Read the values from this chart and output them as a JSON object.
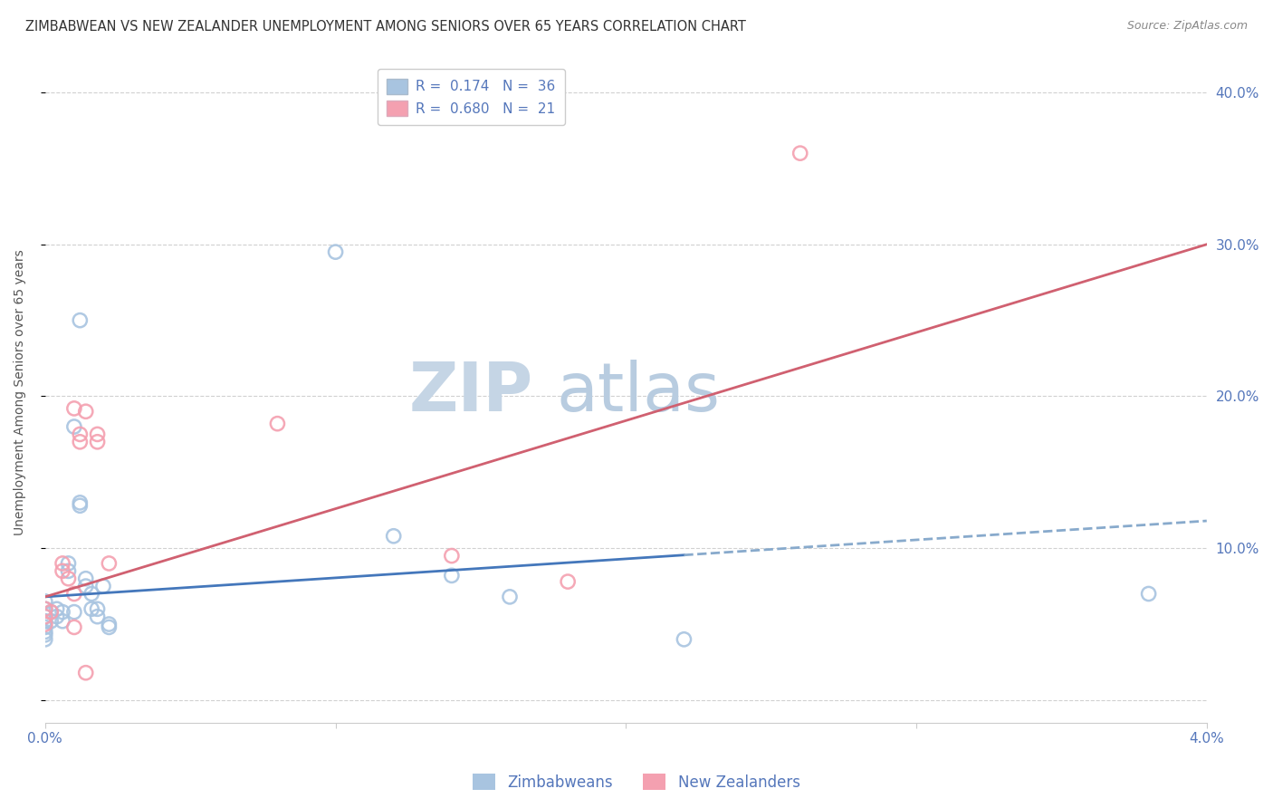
{
  "title": "ZIMBABWEAN VS NEW ZEALANDER UNEMPLOYMENT AMONG SENIORS OVER 65 YEARS CORRELATION CHART",
  "source": "Source: ZipAtlas.com",
  "ylabel": "Unemployment Among Seniors over 65 years",
  "zim_r": 0.174,
  "zim_n": 36,
  "nz_r": 0.68,
  "nz_n": 21,
  "color_zim": "#a8c4e0",
  "color_nz": "#f4a0b0",
  "trendline_zim_solid_color": "#4477bb",
  "trendline_zim_dash_color": "#88aacc",
  "trendline_nz_color": "#d06070",
  "watermark_zip_color": "#c8d8e8",
  "watermark_atlas_color": "#b8cce0",
  "background_color": "#ffffff",
  "grid_color": "#cccccc",
  "axis_label_color": "#5577bb",
  "title_color": "#333333",
  "xmin": 0.0,
  "xmax": 0.04,
  "ymin": -0.015,
  "ymax": 0.42,
  "xtick_values": [
    0.0,
    0.01,
    0.02,
    0.03,
    0.04
  ],
  "ytick_values": [
    0.0,
    0.1,
    0.2,
    0.3,
    0.4
  ],
  "zim_trendline_x0": 0.0,
  "zim_trendline_y0": 0.068,
  "zim_trendline_x1": 0.04,
  "zim_trendline_y1": 0.118,
  "nz_trendline_x0": 0.0,
  "nz_trendline_y0": 0.068,
  "nz_trendline_x1": 0.04,
  "nz_trendline_y1": 0.3,
  "zim_points": [
    [
      0.0,
      0.065
    ],
    [
      0.0,
      0.06
    ],
    [
      0.0,
      0.055
    ],
    [
      0.0,
      0.052
    ],
    [
      0.0,
      0.048
    ],
    [
      0.0,
      0.045
    ],
    [
      0.0,
      0.043
    ],
    [
      0.0,
      0.04
    ],
    [
      0.0002,
      0.058
    ],
    [
      0.0002,
      0.052
    ],
    [
      0.0004,
      0.06
    ],
    [
      0.0004,
      0.055
    ],
    [
      0.0006,
      0.058
    ],
    [
      0.0006,
      0.052
    ],
    [
      0.0008,
      0.09
    ],
    [
      0.0008,
      0.085
    ],
    [
      0.001,
      0.18
    ],
    [
      0.001,
      0.058
    ],
    [
      0.0012,
      0.25
    ],
    [
      0.0012,
      0.13
    ],
    [
      0.0012,
      0.128
    ],
    [
      0.0014,
      0.08
    ],
    [
      0.0014,
      0.075
    ],
    [
      0.0016,
      0.07
    ],
    [
      0.0016,
      0.06
    ],
    [
      0.0018,
      0.06
    ],
    [
      0.0018,
      0.055
    ],
    [
      0.002,
      0.075
    ],
    [
      0.0022,
      0.05
    ],
    [
      0.0022,
      0.048
    ],
    [
      0.01,
      0.295
    ],
    [
      0.012,
      0.108
    ],
    [
      0.014,
      0.082
    ],
    [
      0.016,
      0.068
    ],
    [
      0.022,
      0.04
    ],
    [
      0.038,
      0.07
    ]
  ],
  "nz_points": [
    [
      0.0,
      0.06
    ],
    [
      0.0,
      0.055
    ],
    [
      0.0,
      0.05
    ],
    [
      0.0002,
      0.058
    ],
    [
      0.0006,
      0.09
    ],
    [
      0.0006,
      0.085
    ],
    [
      0.0008,
      0.08
    ],
    [
      0.001,
      0.07
    ],
    [
      0.001,
      0.192
    ],
    [
      0.001,
      0.048
    ],
    [
      0.0012,
      0.175
    ],
    [
      0.0012,
      0.17
    ],
    [
      0.0014,
      0.19
    ],
    [
      0.0014,
      0.018
    ],
    [
      0.0018,
      0.175
    ],
    [
      0.0018,
      0.17
    ],
    [
      0.0022,
      0.09
    ],
    [
      0.008,
      0.182
    ],
    [
      0.014,
      0.095
    ],
    [
      0.018,
      0.078
    ],
    [
      0.026,
      0.36
    ]
  ]
}
